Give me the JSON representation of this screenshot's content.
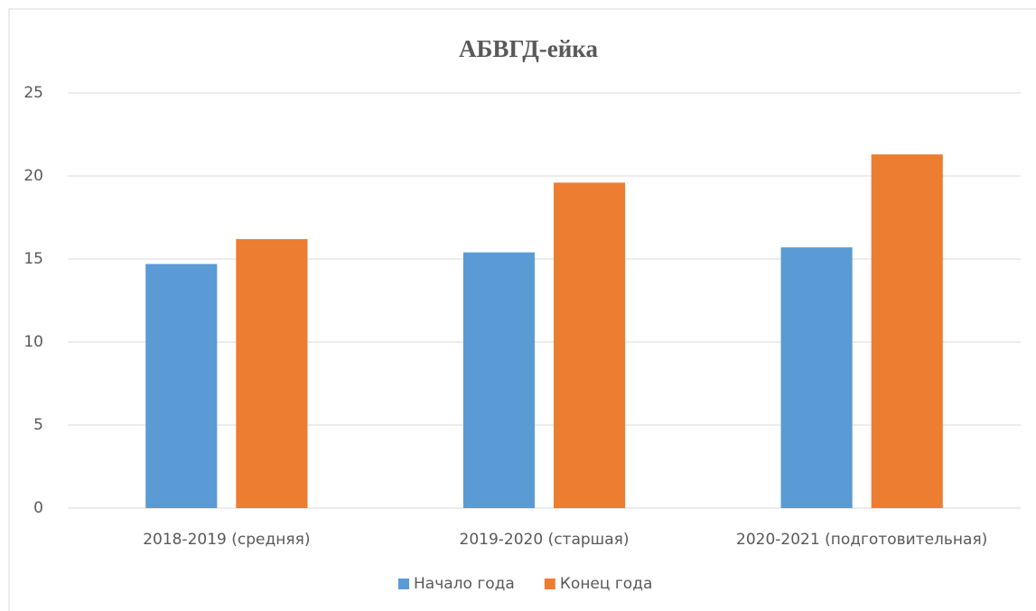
{
  "chart_data": {
    "type": "bar",
    "title": "АБВГД-ейка",
    "categories": [
      "2018-2019 (средняя)",
      "2019-2020 (старшая)",
      "2020-2021 (подготовительная)"
    ],
    "series": [
      {
        "name": "Начало года",
        "color": "#5b9bd5",
        "values": [
          14.7,
          15.4,
          15.7
        ]
      },
      {
        "name": "Конец года",
        "color": "#ed7d31",
        "values": [
          16.2,
          19.6,
          21.3
        ]
      }
    ],
    "ylim": [
      0,
      25
    ],
    "yticks": [
      0,
      5,
      10,
      15,
      20,
      25
    ],
    "grid": true,
    "legend": "bottom"
  }
}
